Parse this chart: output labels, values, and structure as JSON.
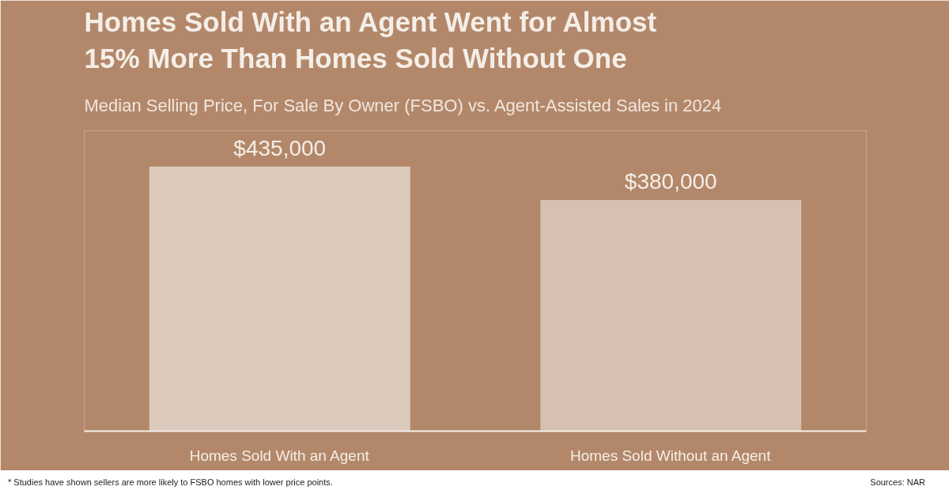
{
  "chart_data": {
    "type": "bar",
    "title": "Homes Sold With an Agent Went for Almost\n15% More Than Homes Sold Without One",
    "subtitle": "Median Selling Price, For Sale By Owner (FSBO) vs. Agent-Assisted Sales in 2024",
    "categories": [
      "Homes Sold With an Agent",
      "Homes Sold Without an Agent"
    ],
    "values": [
      435000,
      380000
    ],
    "colors": [
      "#dccbbd",
      "#d5c0b1"
    ],
    "value_labels": [
      "$435,000",
      "$380,000"
    ],
    "tick_labels": "x",
    "grid": false,
    "annotations": [
      "* Studies have shown sellers are more likely to FSBO homes with lower price points.",
      "Sources: NAR"
    ]
  }
}
